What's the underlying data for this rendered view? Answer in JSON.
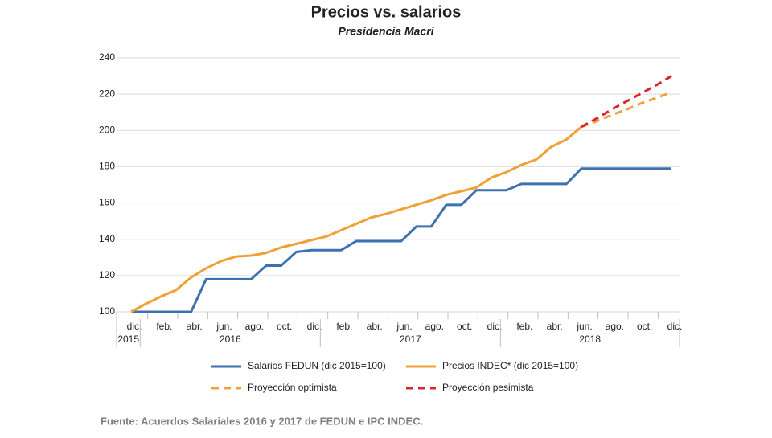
{
  "chart_data": {
    "type": "line",
    "title": "Precios vs. salarios",
    "subtitle": "Presidencia Macri",
    "categories": [
      "dic.",
      null,
      "feb.",
      null,
      "abr.",
      null,
      "jun.",
      null,
      "ago.",
      null,
      "oct.",
      null,
      "dic.",
      null,
      "feb.",
      null,
      "abr.",
      null,
      "jun.",
      null,
      "ago.",
      null,
      "oct.",
      null,
      "dic.",
      null,
      "feb.",
      null,
      "abr.",
      null,
      "jun.",
      null,
      "ago.",
      null,
      "oct.",
      null,
      "dic."
    ],
    "x_groups": [
      {
        "label": "2015",
        "start": 0,
        "end": 0
      },
      {
        "label": "2016",
        "start": 1,
        "end": 12
      },
      {
        "label": "2017",
        "start": 13,
        "end": 24
      },
      {
        "label": "2018",
        "start": 25,
        "end": 36
      }
    ],
    "ylim": [
      100,
      240
    ],
    "yticks": [
      100,
      120,
      140,
      160,
      180,
      200,
      220,
      240
    ],
    "grid": true,
    "series": [
      {
        "name": "Salarios FEDUN (dic 2015=100)",
        "color": "#3d72b0",
        "dashed": false,
        "values": [
          100,
          100,
          100,
          100,
          100,
          118,
          118,
          118,
          118,
          125.5,
          125.5,
          133,
          134,
          134,
          134,
          139,
          139,
          139,
          139,
          147,
          147,
          159,
          159,
          167,
          167,
          167,
          170.5,
          170.5,
          170.5,
          170.5,
          179,
          179,
          179,
          179,
          179,
          179,
          179
        ]
      },
      {
        "name": "Precios INDEC* (dic 2015=100)",
        "color": "#f0a035",
        "dashed": false,
        "values": [
          100,
          104.5,
          108.5,
          112,
          119,
          124,
          128,
          130.5,
          131,
          132.5,
          135.5,
          137.5,
          139.5,
          141.5,
          145,
          148.5,
          152,
          154,
          156.5,
          159,
          161.5,
          164.5,
          166.5,
          168.5,
          174,
          177,
          181,
          184,
          191,
          195,
          202,
          null,
          null,
          null,
          null,
          null,
          null
        ]
      },
      {
        "name": "Proyección optimista",
        "color": "#f0a035",
        "dashed": true,
        "values": [
          null,
          null,
          null,
          null,
          null,
          null,
          null,
          null,
          null,
          null,
          null,
          null,
          null,
          null,
          null,
          null,
          null,
          null,
          null,
          null,
          null,
          null,
          null,
          null,
          null,
          null,
          null,
          null,
          null,
          null,
          202,
          205,
          208.5,
          211.5,
          215,
          218,
          221
        ]
      },
      {
        "name": "Proyección pesimista",
        "color": "#d9262c",
        "dashed": true,
        "values": [
          null,
          null,
          null,
          null,
          null,
          null,
          null,
          null,
          null,
          null,
          null,
          null,
          null,
          null,
          null,
          null,
          null,
          null,
          null,
          null,
          null,
          null,
          null,
          null,
          null,
          null,
          null,
          null,
          null,
          null,
          202,
          206.5,
          211.5,
          216,
          220.5,
          225,
          230
        ]
      }
    ],
    "source": "Fuente: Acuerdos Salariales 2016 y 2017 de FEDUN e IPC INDEC."
  }
}
